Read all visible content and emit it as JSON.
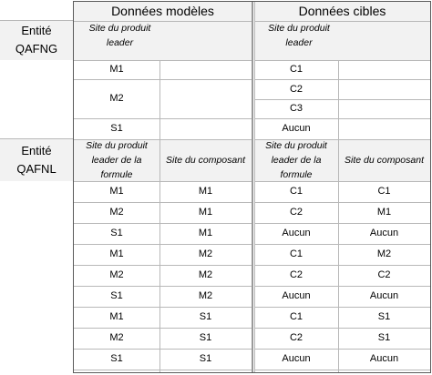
{
  "headers": {
    "model": "Données modèles",
    "target": "Données cibles"
  },
  "entities": [
    {
      "line1": "Entité",
      "line2": "QAFNG"
    },
    {
      "line1": "Entité",
      "line2": "QAFNL"
    }
  ],
  "qafng": {
    "col_header_model": [
      "Site du produit",
      "leader"
    ],
    "col_header_target": [
      "Site du produit",
      "leader"
    ],
    "rows": {
      "m1": {
        "model": "M1",
        "target": "C1"
      },
      "m2": {
        "model": "M2",
        "target_1": "C2",
        "target_2": "C3"
      },
      "s1": {
        "model": "S1",
        "target": "Aucun"
      }
    }
  },
  "qafnl": {
    "col_header_model_leader": [
      "Site du produit",
      "leader de la",
      "formule"
    ],
    "col_header_model_component": "Site du composant",
    "col_header_target_leader": [
      "Site du produit",
      "leader de la",
      "formule"
    ],
    "col_header_target_component": "Site du composant",
    "rows": [
      [
        "M1",
        "M1",
        "C1",
        "C1"
      ],
      [
        "M2",
        "M1",
        "C2",
        "M1"
      ],
      [
        "S1",
        "M1",
        "Aucun",
        "Aucun"
      ],
      [
        "M1",
        "M2",
        "C1",
        "M2"
      ],
      [
        "M2",
        "M2",
        "C2",
        "C2"
      ],
      [
        "S1",
        "M2",
        "Aucun",
        "Aucun"
      ],
      [
        "M1",
        "S1",
        "C1",
        "S1"
      ],
      [
        "M2",
        "S1",
        "C2",
        "S1"
      ],
      [
        "S1",
        "S1",
        "Aucun",
        "Aucun"
      ]
    ]
  }
}
